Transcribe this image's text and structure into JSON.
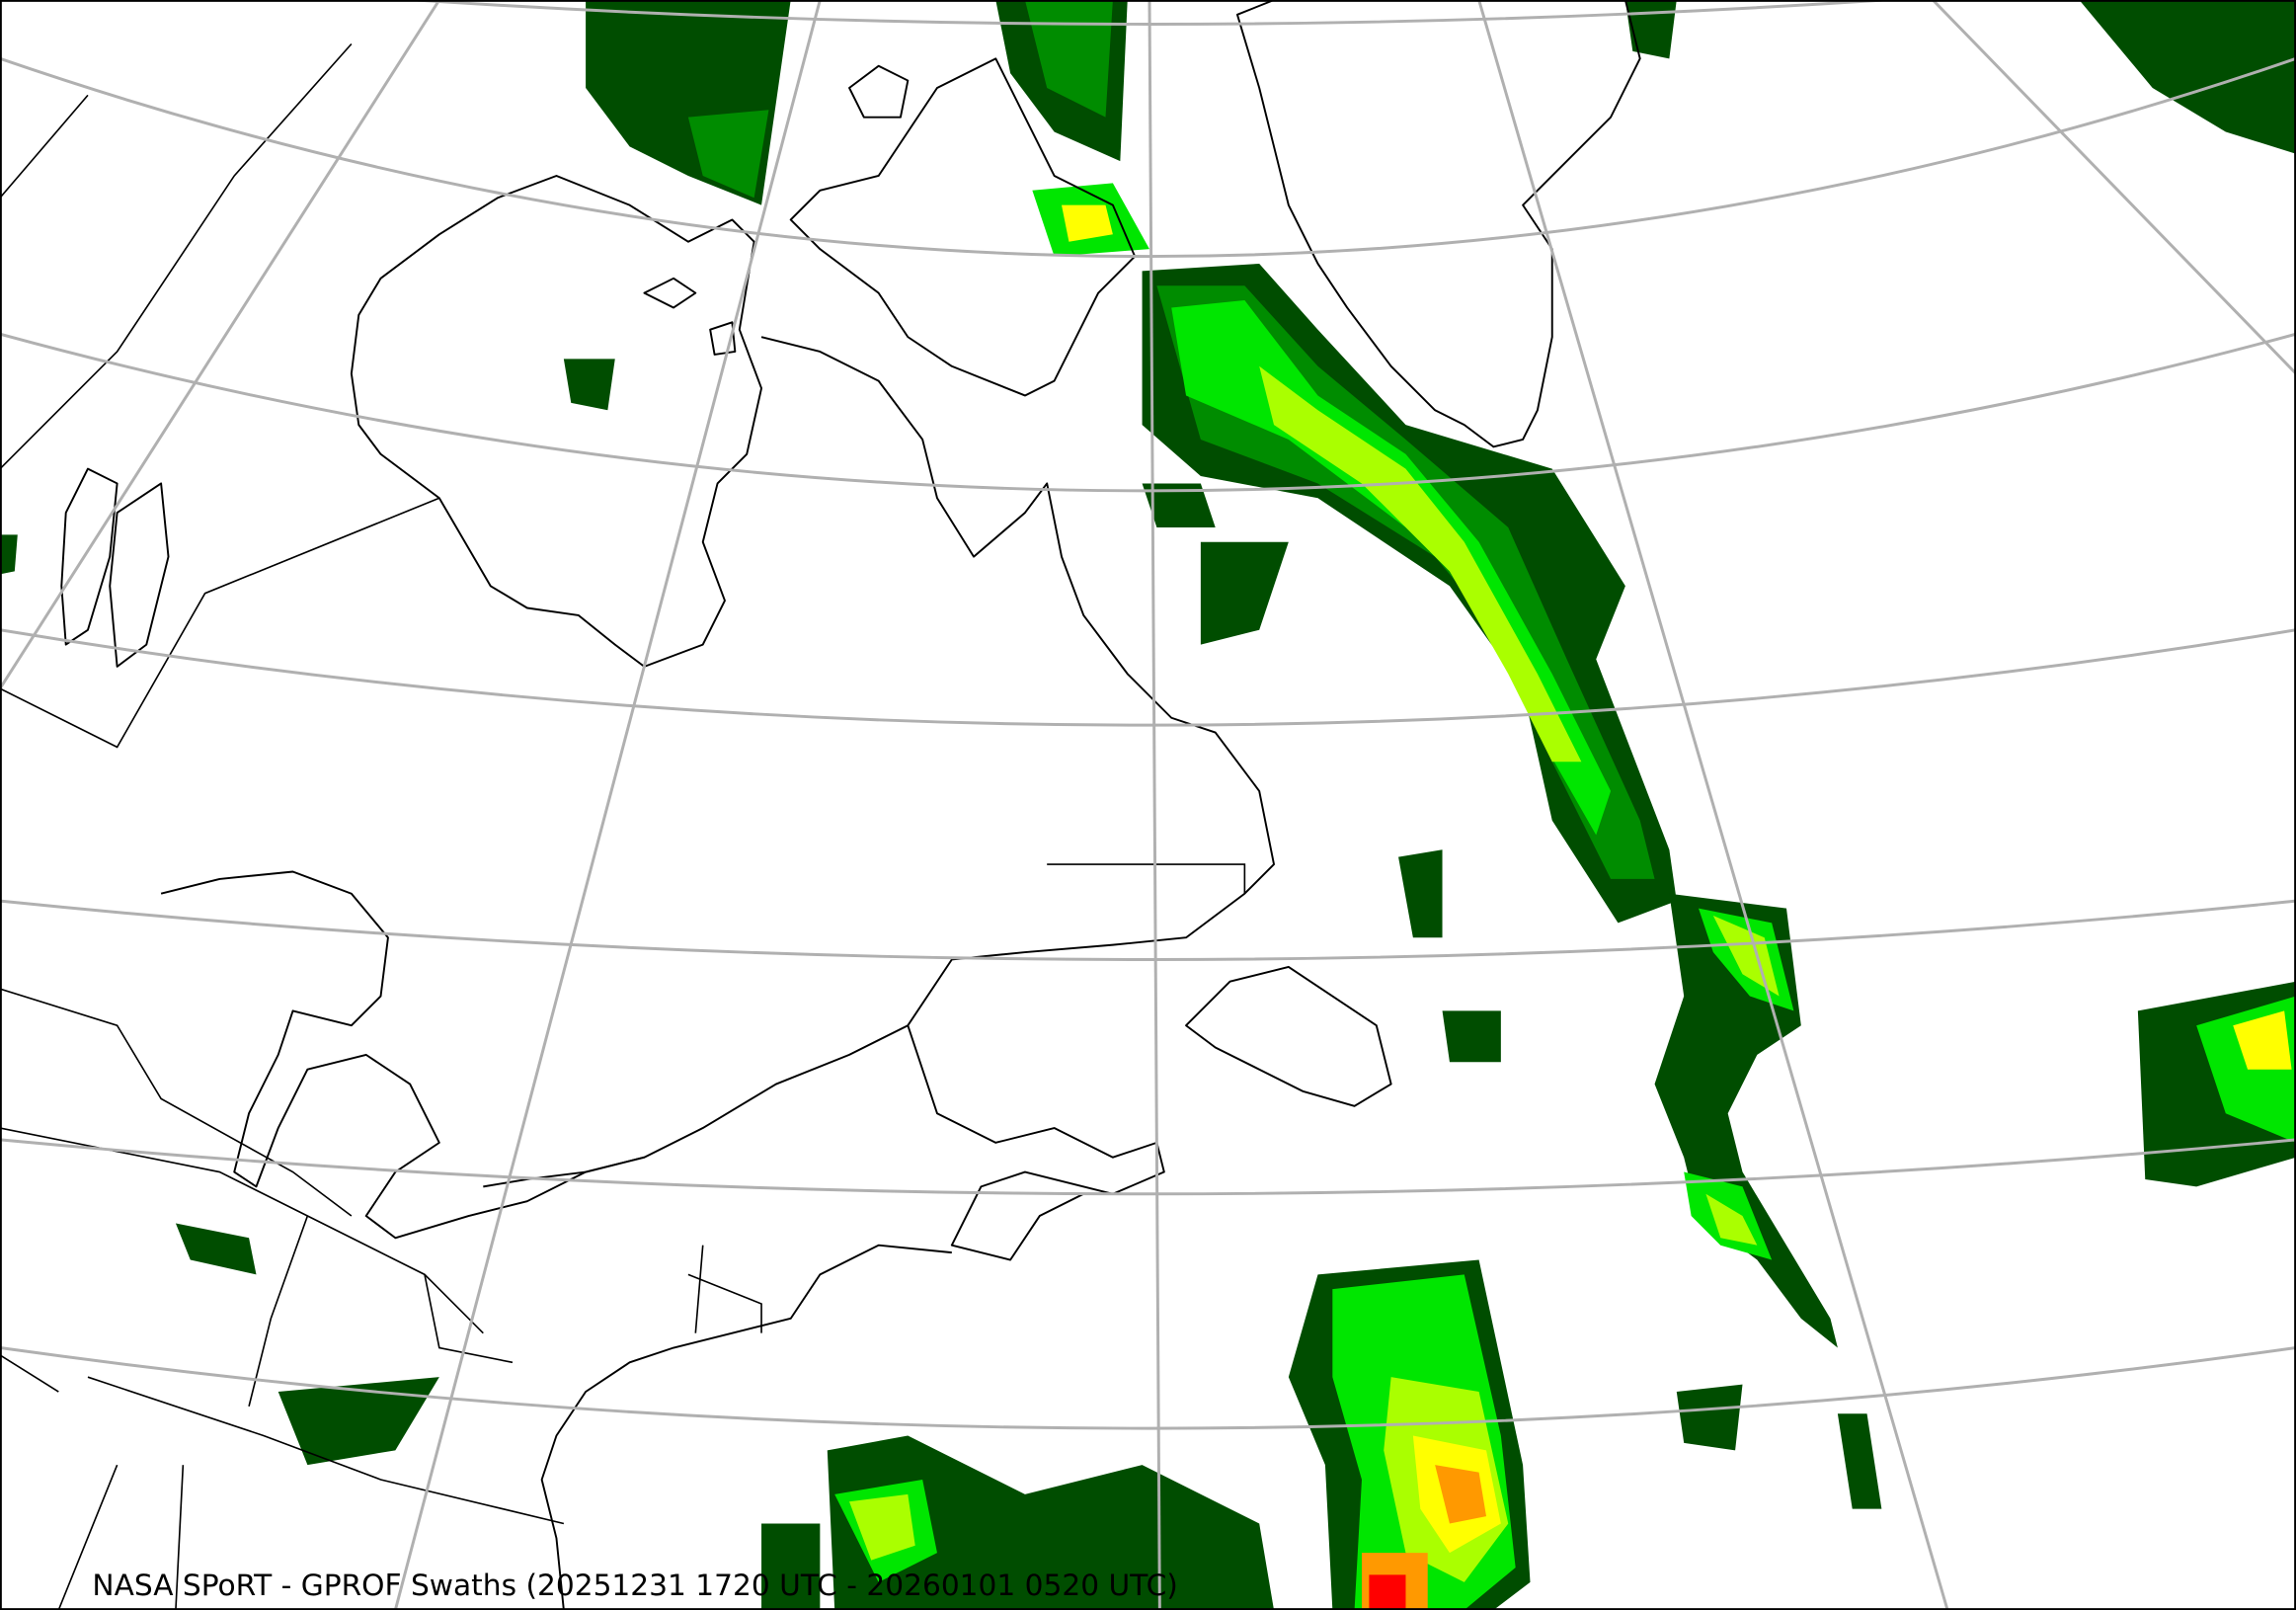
{
  "caption": "NASA SPoRT - GPROF Swaths (20251231 1720 UTC - 20260101 0520 UTC)",
  "map": {
    "projection": "conic",
    "region": "Northeastern North America, Hudson Bay, Labrador Sea, Greenland, North Atlantic",
    "graticule_color": "#b0b0b0",
    "coastline_color": "#000000"
  },
  "precip_colors": {
    "very_light": "#004d00",
    "light": "#008c00",
    "light_moderate": "#00e600",
    "moderate": "#aaff00",
    "moderate_heavy": "#ffff00",
    "heavy": "#ff9900",
    "very_heavy": "#ff0000"
  }
}
